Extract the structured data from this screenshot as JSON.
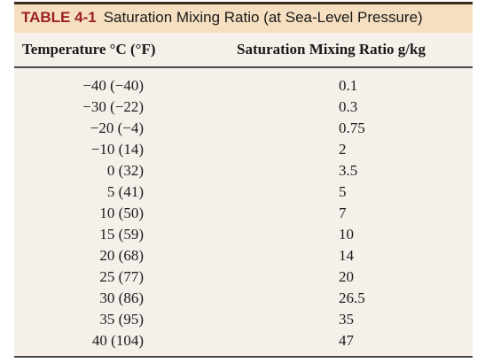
{
  "title": {
    "label": "TABLE 4-1",
    "text": "Saturation Mixing Ratio (at Sea-Level Pressure)"
  },
  "headers": {
    "temperature": "Temperature °C (°F)",
    "ratio": "Saturation Mixing Ratio g/kg"
  },
  "rows": [
    {
      "temp": "−40 (−40)",
      "ratio": "0.1"
    },
    {
      "temp": "−30 (−22)",
      "ratio": "0.3"
    },
    {
      "temp": "−20 (−4)",
      "ratio": "0.75"
    },
    {
      "temp": "−10 (14)",
      "ratio": "2"
    },
    {
      "temp": "0 (32)",
      "ratio": "3.5"
    },
    {
      "temp": "5 (41)",
      "ratio": "5"
    },
    {
      "temp": "10 (50)",
      "ratio": "7"
    },
    {
      "temp": "15 (59)",
      "ratio": "10"
    },
    {
      "temp": "20 (68)",
      "ratio": "14"
    },
    {
      "temp": "25 (77)",
      "ratio": "20"
    },
    {
      "temp": "30 (86)",
      "ratio": "26.5"
    },
    {
      "temp": "35 (95)",
      "ratio": "35"
    },
    {
      "temp": "40 (104)",
      "ratio": "47"
    }
  ],
  "colors": {
    "title_background": "#f6dfc0",
    "table_label": "#9a1f1f",
    "table_background": "#f5f1ea"
  }
}
